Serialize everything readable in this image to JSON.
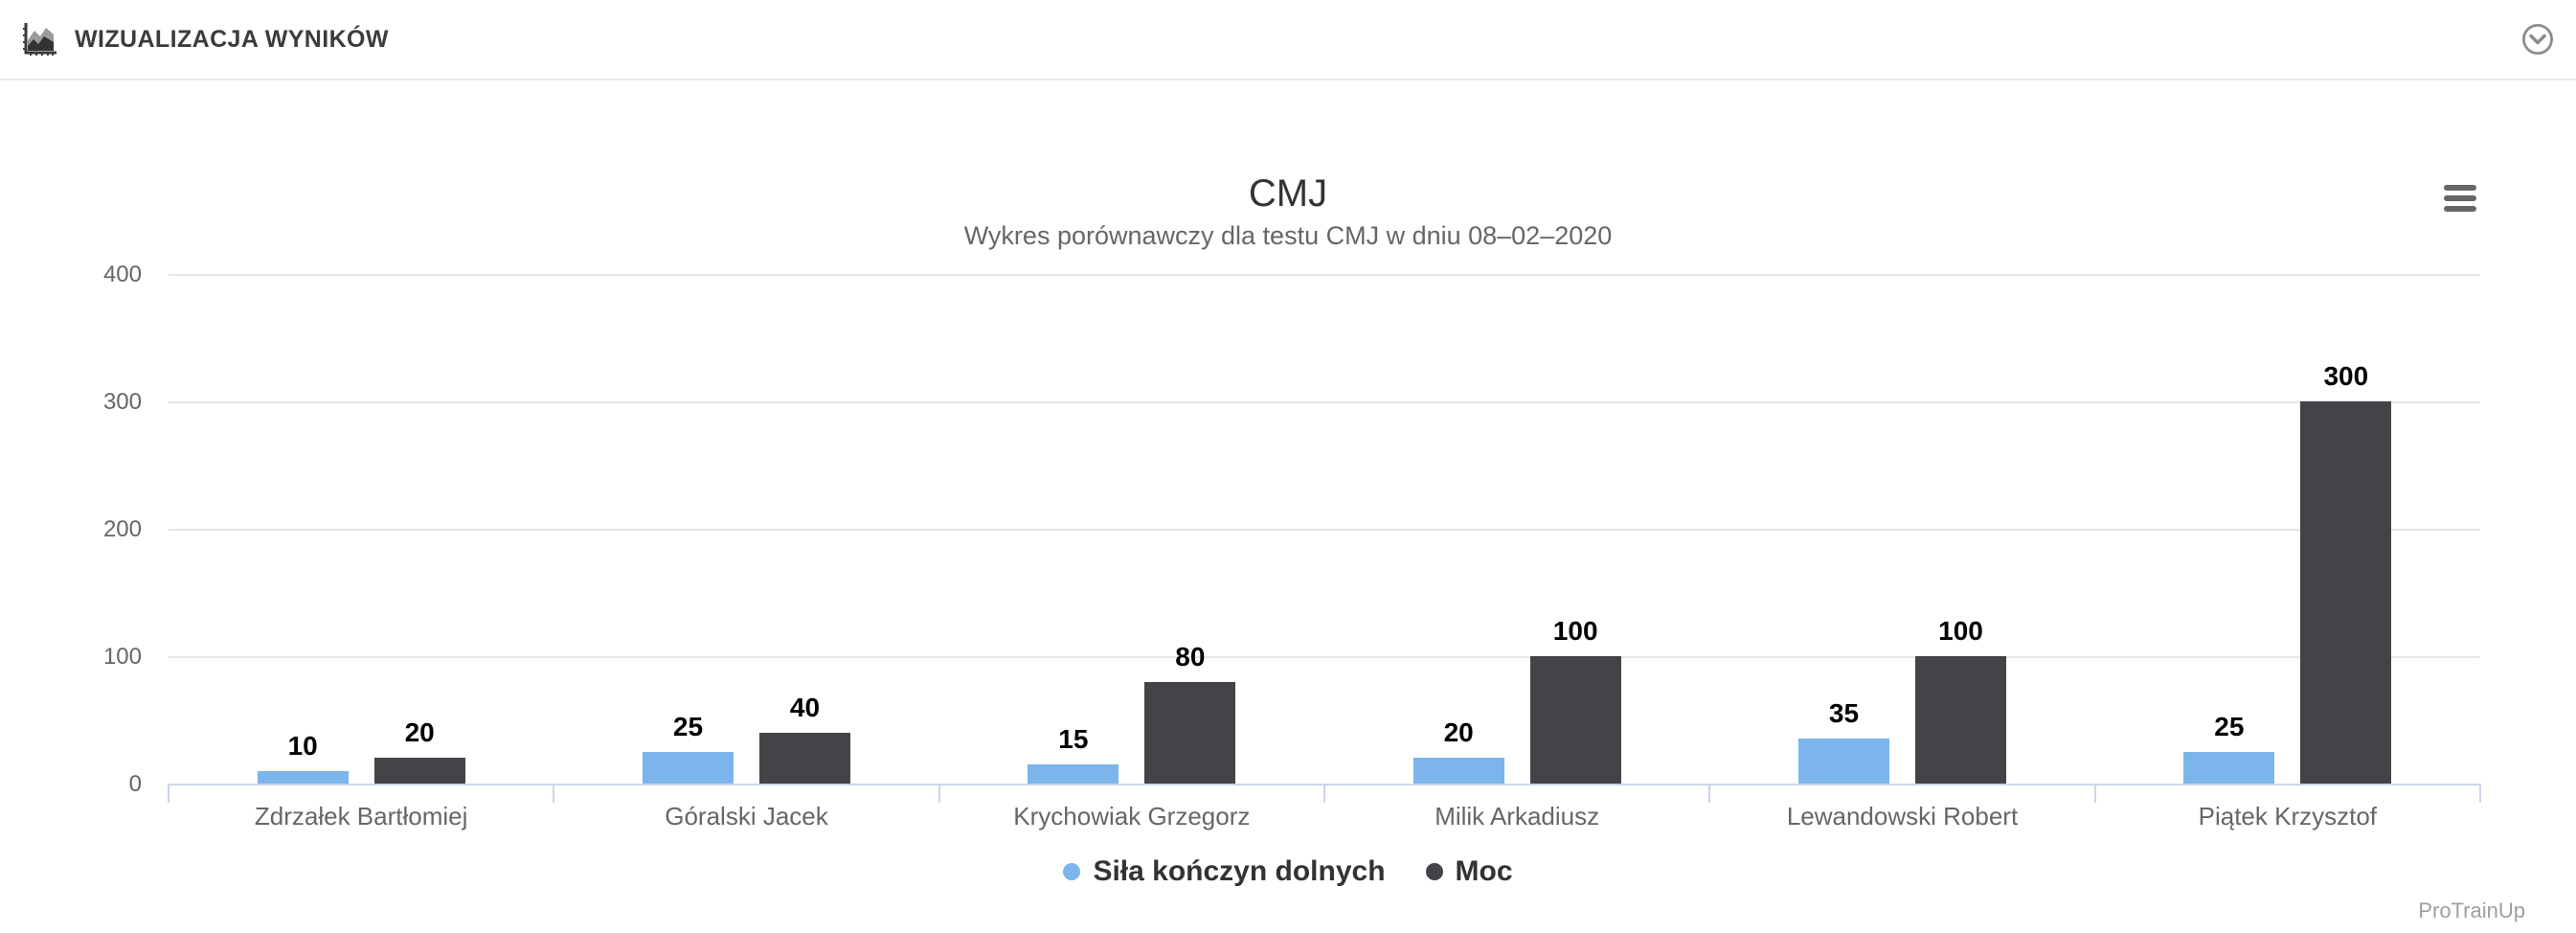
{
  "header": {
    "title": "WIZUALIZACJA WYNIKÓW",
    "icon": "area-chart-icon",
    "collapse_icon": "chevron-down-circle-icon"
  },
  "chart": {
    "menu_icon": "hamburger-menu-icon",
    "credit": "ProTrainUp"
  },
  "chart_data": {
    "type": "bar",
    "title": "CMJ",
    "subtitle": "Wykres porównawczy dla testu CMJ w dniu 08–02–2020",
    "categories": [
      "Zdrzałek Bartłomiej",
      "Góralski Jacek",
      "Krychowiak Grzegorz",
      "Milik Arkadiusz",
      "Lewandowski Robert",
      "Piątek Krzysztof"
    ],
    "series": [
      {
        "name": "Siła kończyn dolnych",
        "color": "#7cb5ec",
        "values": [
          10,
          25,
          15,
          20,
          35,
          25
        ]
      },
      {
        "name": "Moc",
        "color": "#434348",
        "values": [
          20,
          40,
          80,
          100,
          100,
          300
        ]
      }
    ],
    "xlabel": "",
    "ylabel": "",
    "ylim": [
      0,
      400
    ],
    "yticks": [
      0,
      100,
      200,
      300,
      400
    ],
    "grid": true,
    "grid_color": "#e6e6e6",
    "axis_color": "#ccd6eb",
    "legend_position": "bottom",
    "data_labels": true
  }
}
